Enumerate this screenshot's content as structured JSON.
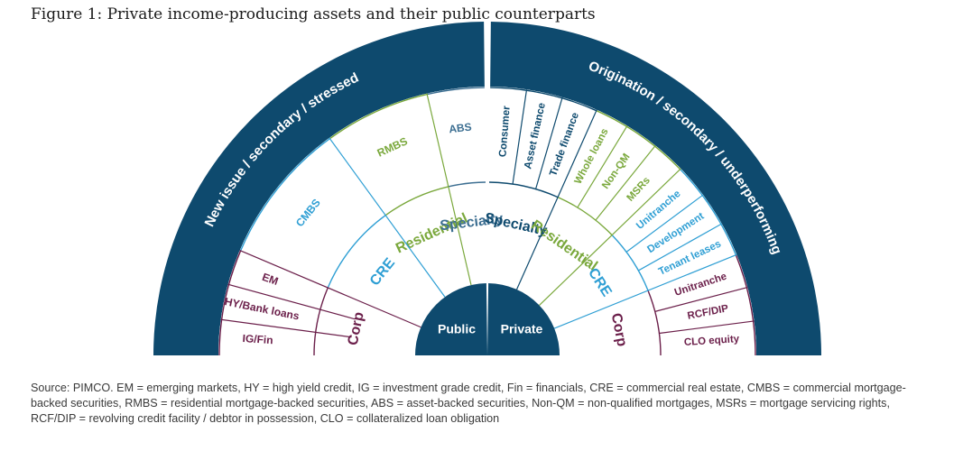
{
  "title": "Figure 1: Private income-producing assets and their public counterparts",
  "colors": {
    "navy": "#0e4a6e",
    "teal": "#2f9fd4",
    "green": "#7aa83c",
    "maroon": "#6b1f4a",
    "slate": "#3d6f92"
  },
  "left": {
    "band_label": "New issue / secondary / stressed",
    "center_label": "Public",
    "categories": [
      {
        "key": "corp",
        "label": "Corp",
        "color": "maroon",
        "items": [
          "IG/Fin",
          "HY/Bank loans",
          "EM"
        ]
      },
      {
        "key": "cre",
        "label": "CRE",
        "color": "teal",
        "items": [
          "CMBS"
        ]
      },
      {
        "key": "residential",
        "label": "Residential",
        "color": "green",
        "items": [
          "RMBS"
        ]
      },
      {
        "key": "specialty",
        "label": "Specialty",
        "color": "slate",
        "items": [
          "ABS"
        ]
      }
    ]
  },
  "right": {
    "band_label": "Origination / secondary / underperforming",
    "center_label": "Private",
    "categories": [
      {
        "key": "specialty",
        "label": "Specialty",
        "color": "navy",
        "items": [
          "Consumer",
          "Asset finance",
          "Trade finance"
        ]
      },
      {
        "key": "residential",
        "label": "Residential",
        "color": "green",
        "items": [
          "Whole loans",
          "Non-QM",
          "MSRs"
        ]
      },
      {
        "key": "cre",
        "label": "CRE",
        "color": "teal",
        "items": [
          "Unitranche",
          "Development",
          "Tenant leases"
        ]
      },
      {
        "key": "corp",
        "label": "Corp",
        "color": "maroon",
        "items": [
          "Unitranche",
          "RCF/DIP",
          "CLO equity"
        ]
      }
    ]
  },
  "source": "Source: PIMCO. EM = emerging markets, HY = high yield credit, IG = investment grade credit, Fin = financials, CRE = commercial real estate, CMBS = commercial mortgage-backed securities, RMBS = residential mortgage-backed securities, ABS = asset-backed securities, Non-QM = non-qualified mortgages, MSRs = mortgage servicing rights, RCF/DIP = revolving credit facility / debtor in possession, CLO = collateralized loan obligation"
}
